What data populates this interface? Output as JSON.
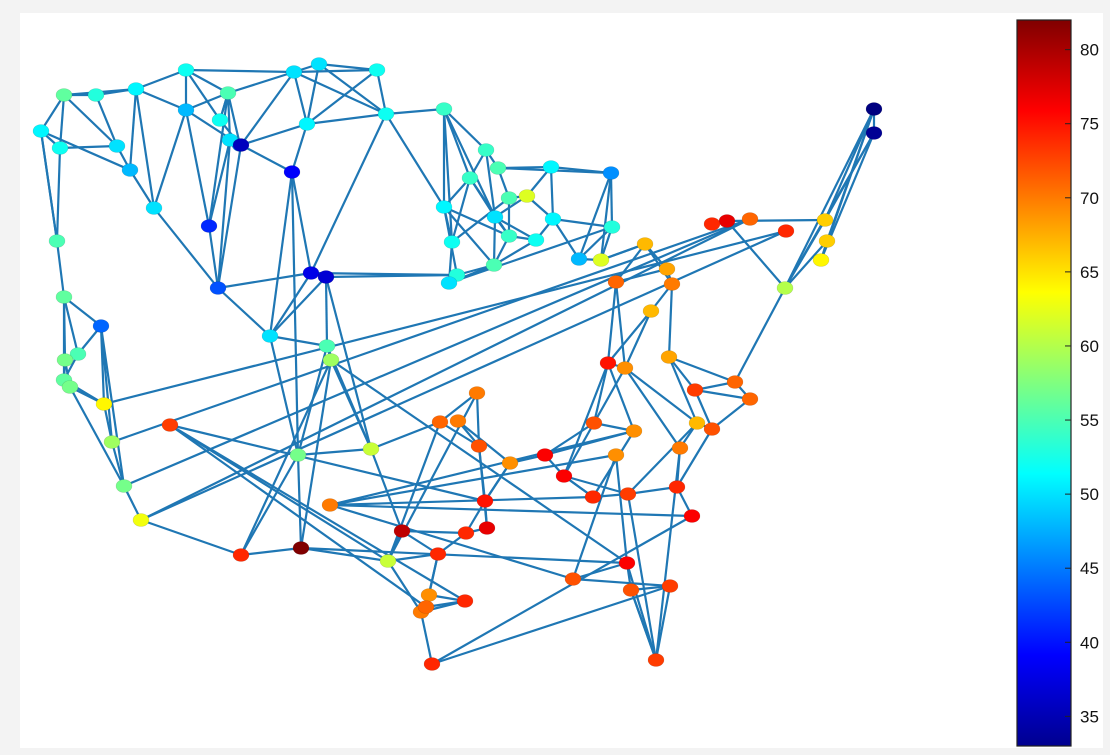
{
  "chart_data": {
    "type": "graph",
    "title": "",
    "xlabel": "",
    "ylabel": "",
    "colormap": "jet",
    "color_range": [
      33,
      82
    ],
    "colorbar_ticks": [
      35,
      40,
      45,
      50,
      55,
      60,
      65,
      70,
      75,
      80
    ],
    "edge_color": "#1f77b4",
    "node_values": [
      56,
      53,
      51,
      52,
      55,
      48,
      52,
      46,
      50,
      48,
      41,
      39,
      50,
      51,
      52,
      50,
      36,
      55,
      43,
      50,
      50,
      52,
      51,
      52,
      54,
      54,
      54,
      51,
      50,
      55,
      51,
      46,
      55,
      62,
      33,
      34,
      60,
      66,
      66,
      64,
      55,
      52,
      53,
      50,
      54,
      52,
      51,
      62,
      48,
      38,
      37,
      53,
      50,
      56,
      55,
      57,
      56,
      64,
      59,
      57,
      63,
      44,
      57,
      57,
      61,
      55,
      59,
      67,
      71,
      68,
      70,
      67,
      69,
      75,
      68,
      73,
      71,
      71,
      72,
      67,
      70,
      72,
      69,
      76,
      76,
      74,
      73,
      74,
      76,
      74,
      61,
      79,
      82,
      74,
      74,
      77,
      75,
      72,
      70,
      71,
      70,
      69,
      69,
      70,
      72,
      76,
      72,
      73,
      73,
      74,
      70,
      69,
      71,
      74,
      73,
      74,
      71,
      77,
      74
    ]
  }
}
